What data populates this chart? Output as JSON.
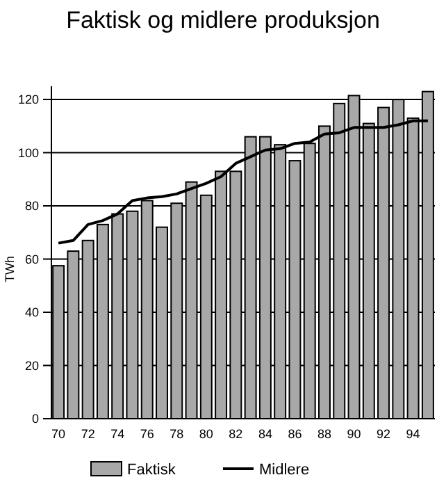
{
  "chart_data": {
    "type": "bar",
    "title": "Faktisk og midlere produksjon",
    "ylabel": "TWh",
    "categories": [
      "70",
      null,
      "72",
      null,
      "74",
      null,
      "76",
      null,
      "78",
      null,
      "80",
      null,
      "82",
      null,
      "84",
      null,
      "86",
      null,
      "88",
      null,
      "90",
      null,
      "92",
      null,
      "94",
      null
    ],
    "series": [
      {
        "name": "Faktisk",
        "color": "#a8a8a8",
        "values": [
          57.5,
          63,
          67,
          73,
          77,
          78,
          82,
          72,
          81,
          89,
          84,
          93,
          93,
          106,
          106,
          103,
          97,
          103.5,
          110,
          118.5,
          121.5,
          111,
          117,
          120,
          113,
          123
        ]
      },
      {
        "name": "Midlere",
        "type": "line",
        "color": "#000000",
        "values": [
          66,
          67,
          73,
          74.5,
          77,
          82,
          83,
          83.5,
          84.5,
          86.5,
          88.5,
          91,
          96,
          98.5,
          101,
          101.5,
          103.5,
          104,
          107,
          107.5,
          109.5,
          109.5,
          109.5,
          110.5,
          112,
          112
        ]
      }
    ],
    "ylim": [
      0,
      125
    ],
    "yticks": [
      0,
      20,
      40,
      60,
      80,
      100,
      120
    ],
    "grid": "y",
    "legend": "bottom",
    "marker": "none",
    "line_style": "solid"
  }
}
